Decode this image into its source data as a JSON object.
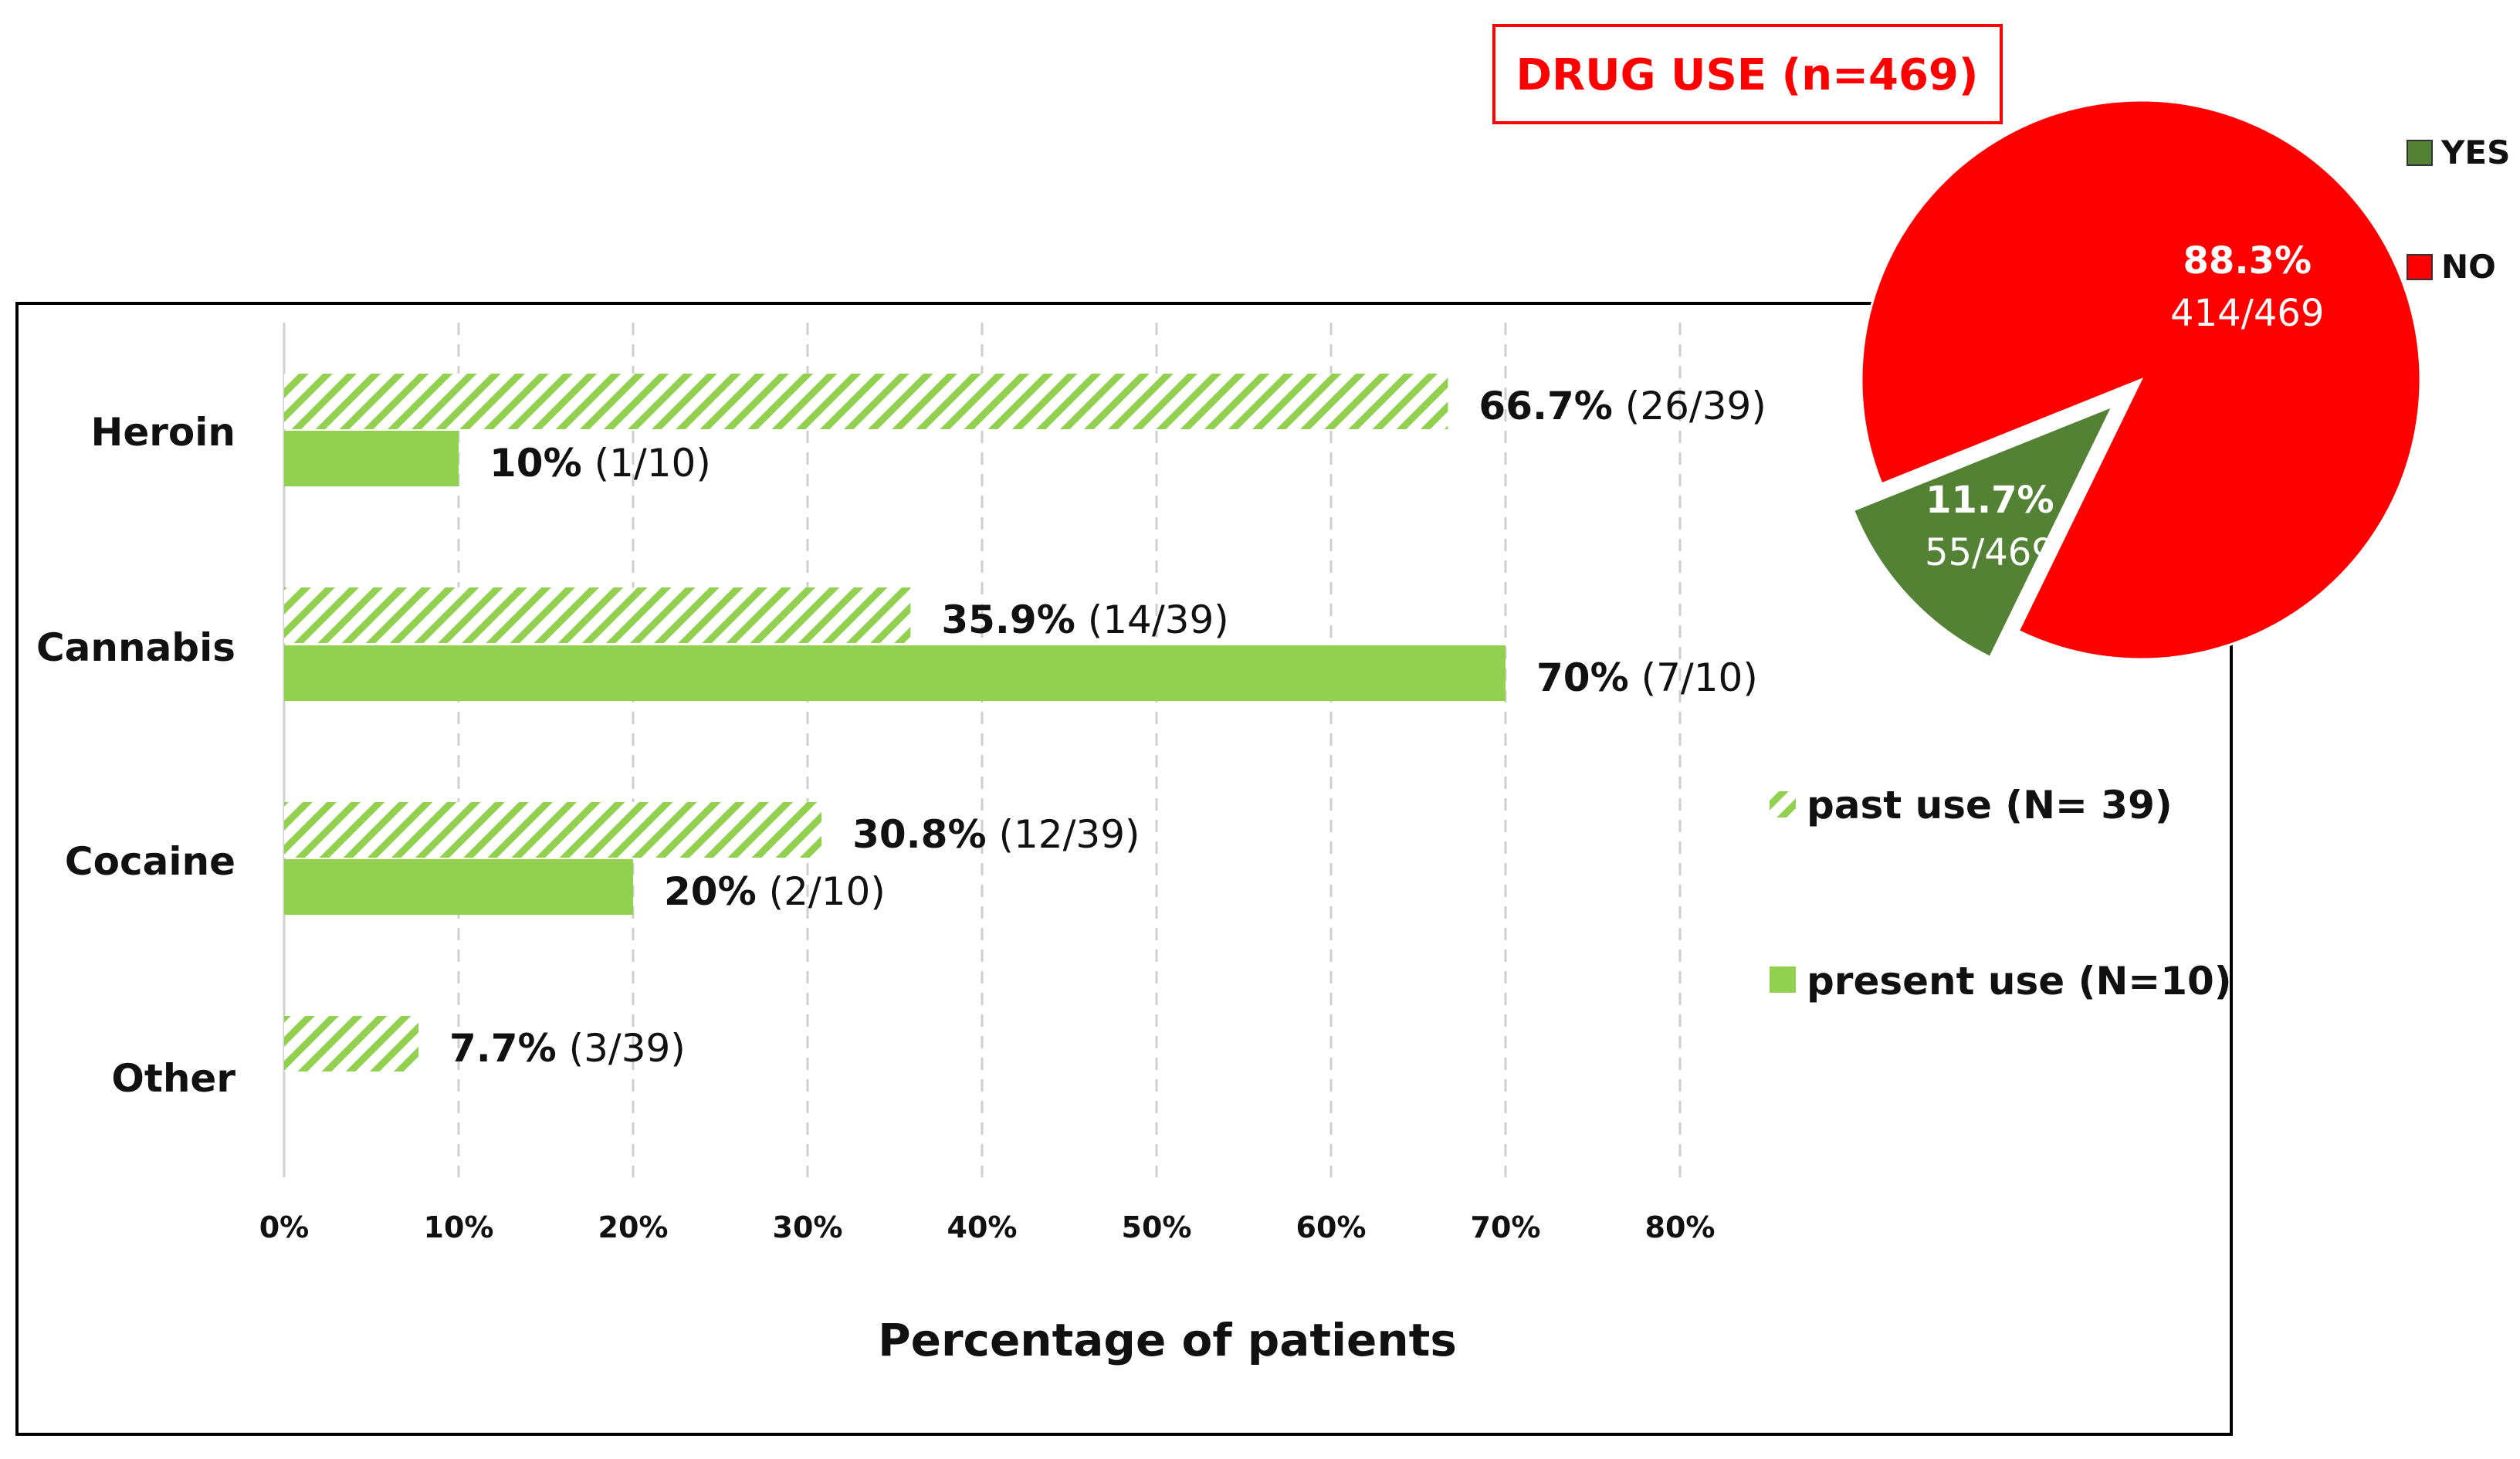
{
  "chart_data": [
    {
      "type": "bar",
      "orientation": "horizontal",
      "xlabel": "Percentage of patients",
      "xlim": [
        0,
        80
      ],
      "x_ticks": [
        "0%",
        "10%",
        "20%",
        "30%",
        "40%",
        "50%",
        "60%",
        "70%",
        "80%"
      ],
      "grid": "vertical dashed",
      "legend_position": "right",
      "categories": [
        "Heroin",
        "Cannabis",
        "Cocaine",
        "Other"
      ],
      "series": [
        {
          "name": "past use (N= 39)",
          "color": "#92d050",
          "pattern": "diagonal-hatch",
          "values": [
            66.7,
            35.9,
            30.8,
            7.7
          ],
          "labels_value": [
            "66.7%",
            "35.9%",
            "30.8%",
            "7.7%"
          ],
          "labels_count": [
            "(26/39)",
            "(14/39)",
            "(12/39)",
            "(3/39)"
          ]
        },
        {
          "name": "present use (N=10)",
          "color": "#92d050",
          "pattern": "solid",
          "values": [
            10,
            70,
            20,
            null
          ],
          "labels_value": [
            "10%",
            "70%",
            "20%",
            ""
          ],
          "labels_count": [
            "(1/10)",
            "(7/10)",
            "(2/10)",
            ""
          ]
        }
      ]
    },
    {
      "type": "pie",
      "title": "DRUG USE (n=469)",
      "title_color": "#ff0000",
      "legend_position": "right",
      "slices": [
        {
          "name": "YES",
          "value": 11.7,
          "label_pct": "11.7%",
          "label_count": "55/469",
          "color": "#548235",
          "exploded": true
        },
        {
          "name": "NO",
          "value": 88.3,
          "label_pct": "88.3%",
          "label_count": "414/469",
          "color": "#ff0000",
          "exploded": false
        }
      ]
    }
  ]
}
